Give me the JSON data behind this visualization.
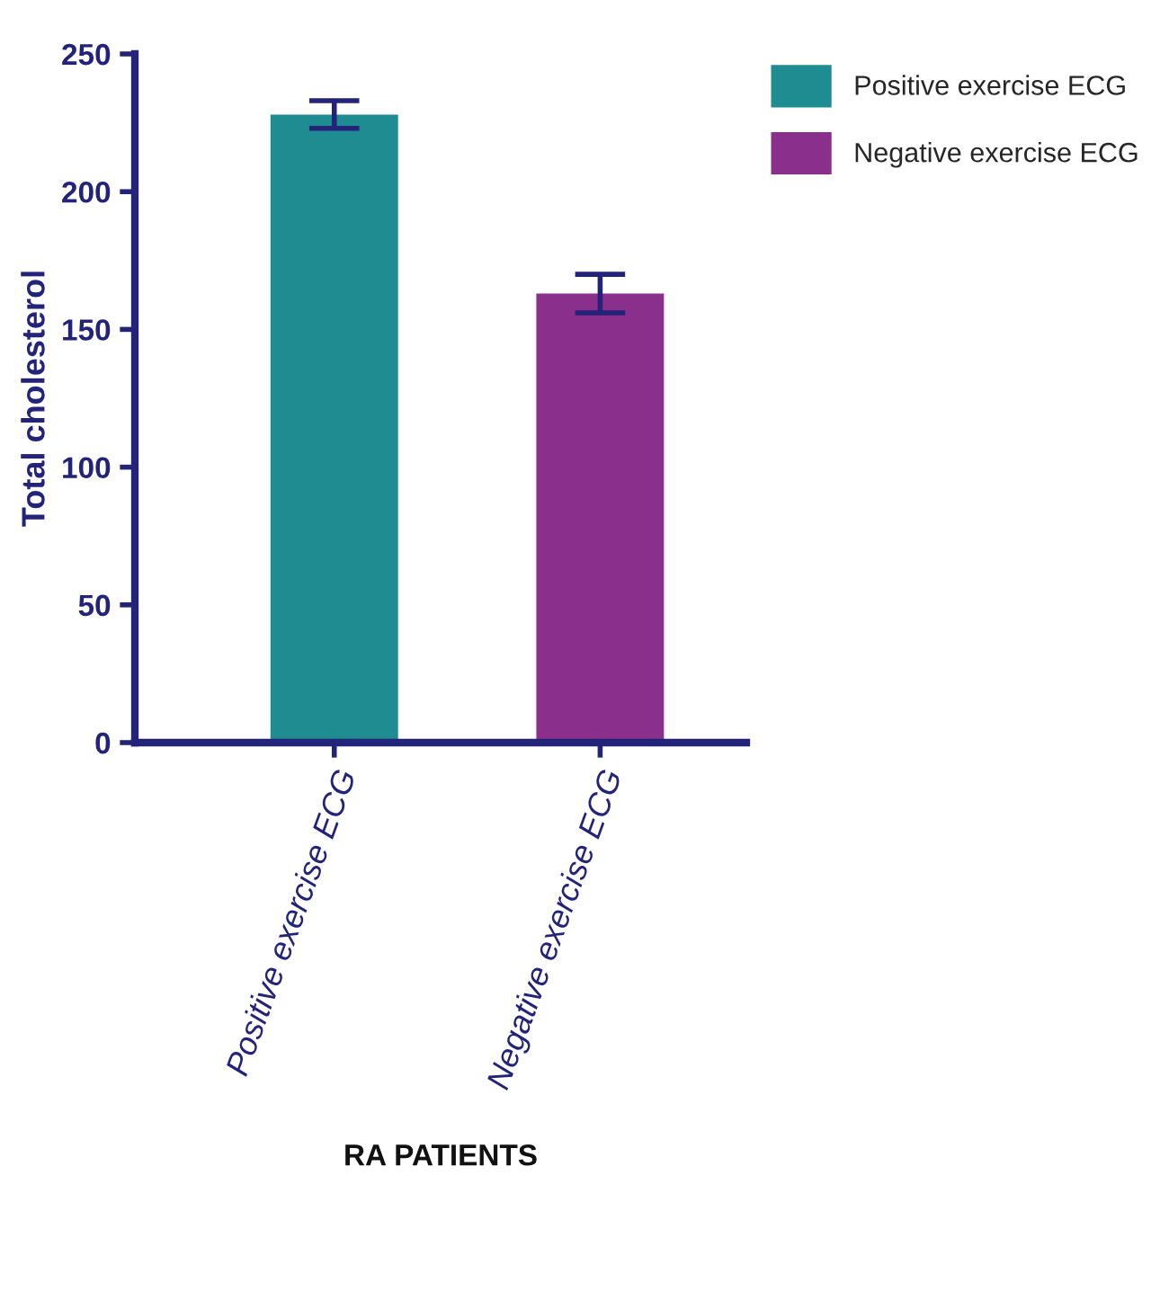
{
  "chart_data": {
    "type": "bar",
    "xlabel": "RA PATIENTS",
    "ylabel": "Total cholesterol",
    "categories": [
      "Positive exercise ECG",
      "Negative exercise ECG"
    ],
    "series": [
      {
        "name": "Positive exercise ECG",
        "color": "#1e8c91",
        "values": [
          228,
          null
        ],
        "errors": [
          5,
          null
        ]
      },
      {
        "name": "Negative exercise ECG",
        "color": "#8b2f8c",
        "values": [
          null,
          163
        ],
        "errors": [
          null,
          7
        ]
      }
    ],
    "ylim": [
      0,
      250
    ],
    "yticks": [
      0,
      50,
      100,
      150,
      200,
      250
    ],
    "grid": false,
    "legend": "top right"
  }
}
